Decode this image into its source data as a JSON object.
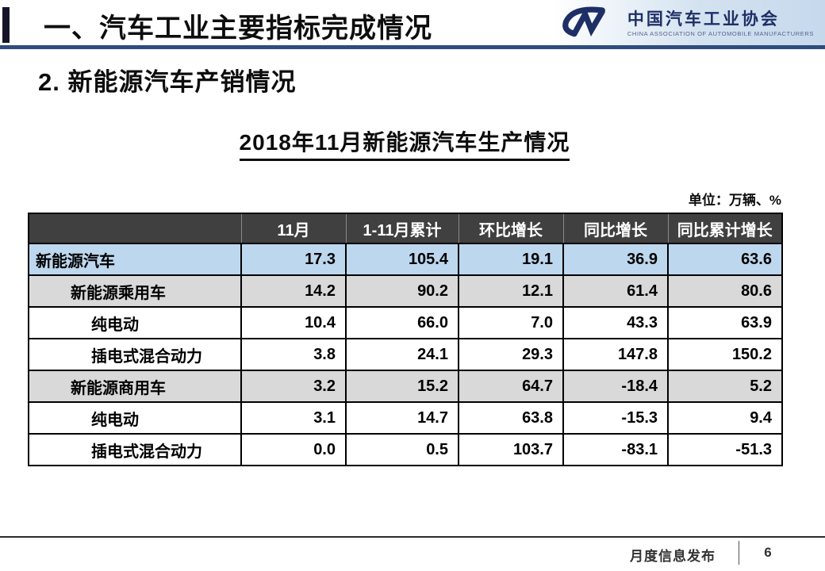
{
  "header": {
    "section_title": "一、汽车工业主要指标完成情况",
    "subtitle": "2. 新能源汽车产销情况",
    "logo": {
      "monogram": "CM",
      "org_name_cn": "中国汽车工业协会",
      "org_name_en": "CHINA ASSOCIATION OF AUTOMOBILE MANUFACTURERS"
    }
  },
  "content": {
    "table_title": "2018年11月新能源汽车生产情况",
    "units_label": "单位：万辆、%"
  },
  "chart_data": {
    "type": "table",
    "title": "2018年11月新能源汽车生产情况",
    "units": "万辆、%",
    "columns": [
      "",
      "11月",
      "1-11月累计",
      "环比增长",
      "同比增长",
      "同比累计增长"
    ],
    "rows": [
      {
        "label": "新能源汽车",
        "indent": 0,
        "highlight": "blue",
        "values": [
          "17.3",
          "105.4",
          "19.1",
          "36.9",
          "63.6"
        ]
      },
      {
        "label": "新能源乘用车",
        "indent": 1,
        "highlight": "gray",
        "values": [
          "14.2",
          "90.2",
          "12.1",
          "61.4",
          "80.6"
        ]
      },
      {
        "label": "纯电动",
        "indent": 2,
        "highlight": "white",
        "values": [
          "10.4",
          "66.0",
          "7.0",
          "43.3",
          "63.9"
        ]
      },
      {
        "label": "插电式混合动力",
        "indent": 2,
        "highlight": "white",
        "values": [
          "3.8",
          "24.1",
          "29.3",
          "147.8",
          "150.2"
        ]
      },
      {
        "label": "新能源商用车",
        "indent": 1,
        "highlight": "gray",
        "values": [
          "3.2",
          "15.2",
          "64.7",
          "-18.4",
          "5.2"
        ]
      },
      {
        "label": "纯电动",
        "indent": 2,
        "highlight": "white",
        "values": [
          "3.1",
          "14.7",
          "63.8",
          "-15.3",
          "9.4"
        ]
      },
      {
        "label": "插电式混合动力",
        "indent": 2,
        "highlight": "white",
        "values": [
          "0.0",
          "0.5",
          "103.7",
          "-83.1",
          "-51.3"
        ]
      }
    ]
  },
  "footer": {
    "label": "月度信息发布",
    "page_number": "6"
  },
  "colors": {
    "accent_line": "#2e4c7e",
    "table_header_bg": "#404040",
    "row_highlight_blue": "#bdd7ee",
    "row_highlight_gray": "#d9d9d9",
    "logo_navy": "#1e2f66"
  }
}
